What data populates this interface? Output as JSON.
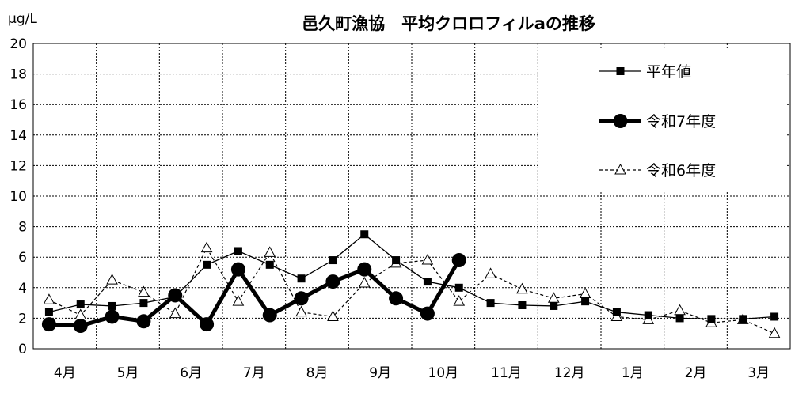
{
  "unit_label": "μg/L",
  "chart_data": {
    "type": "line",
    "title": "邑久町漁協　平均クロロフィルaの推移",
    "ylim": [
      0,
      20
    ],
    "y_ticks": [
      "0",
      "2",
      "4",
      "6",
      "8",
      "10",
      "12",
      "14",
      "16",
      "18",
      "20"
    ],
    "month_labels": [
      "4月",
      "5月",
      "6月",
      "7月",
      "8月",
      "9月",
      "10月",
      "11月",
      "12月",
      "1月",
      "2月",
      "3月"
    ],
    "x_points_per_month": 2,
    "grid": true,
    "legend_position": "top-right",
    "series": [
      {
        "name": "平年値",
        "style": "solid-square",
        "color": "#000000",
        "values": [
          2.4,
          2.9,
          2.8,
          3.0,
          3.4,
          5.5,
          6.4,
          5.5,
          4.6,
          5.8,
          7.5,
          5.8,
          4.4,
          4.0,
          3.0,
          2.85,
          2.8,
          3.1,
          2.4,
          2.2,
          2.0,
          1.95,
          1.95,
          2.1
        ]
      },
      {
        "name": "令和7年度",
        "style": "bold-circle",
        "color": "#000000",
        "values": [
          1.6,
          1.5,
          2.1,
          1.8,
          3.5,
          1.6,
          5.2,
          2.2,
          3.3,
          4.4,
          5.2,
          3.3,
          2.3,
          5.8,
          null,
          null,
          null,
          null,
          null,
          null,
          null,
          null,
          null,
          null
        ]
      },
      {
        "name": "令和6年度",
        "style": "dashed-triangle",
        "color": "#000000",
        "values": [
          3.2,
          2.2,
          4.5,
          3.7,
          2.3,
          6.6,
          3.1,
          6.3,
          2.4,
          2.1,
          4.3,
          5.6,
          5.8,
          3.1,
          4.9,
          3.9,
          3.3,
          3.6,
          2.1,
          1.9,
          2.5,
          1.7,
          1.9,
          1.0
        ]
      }
    ]
  }
}
